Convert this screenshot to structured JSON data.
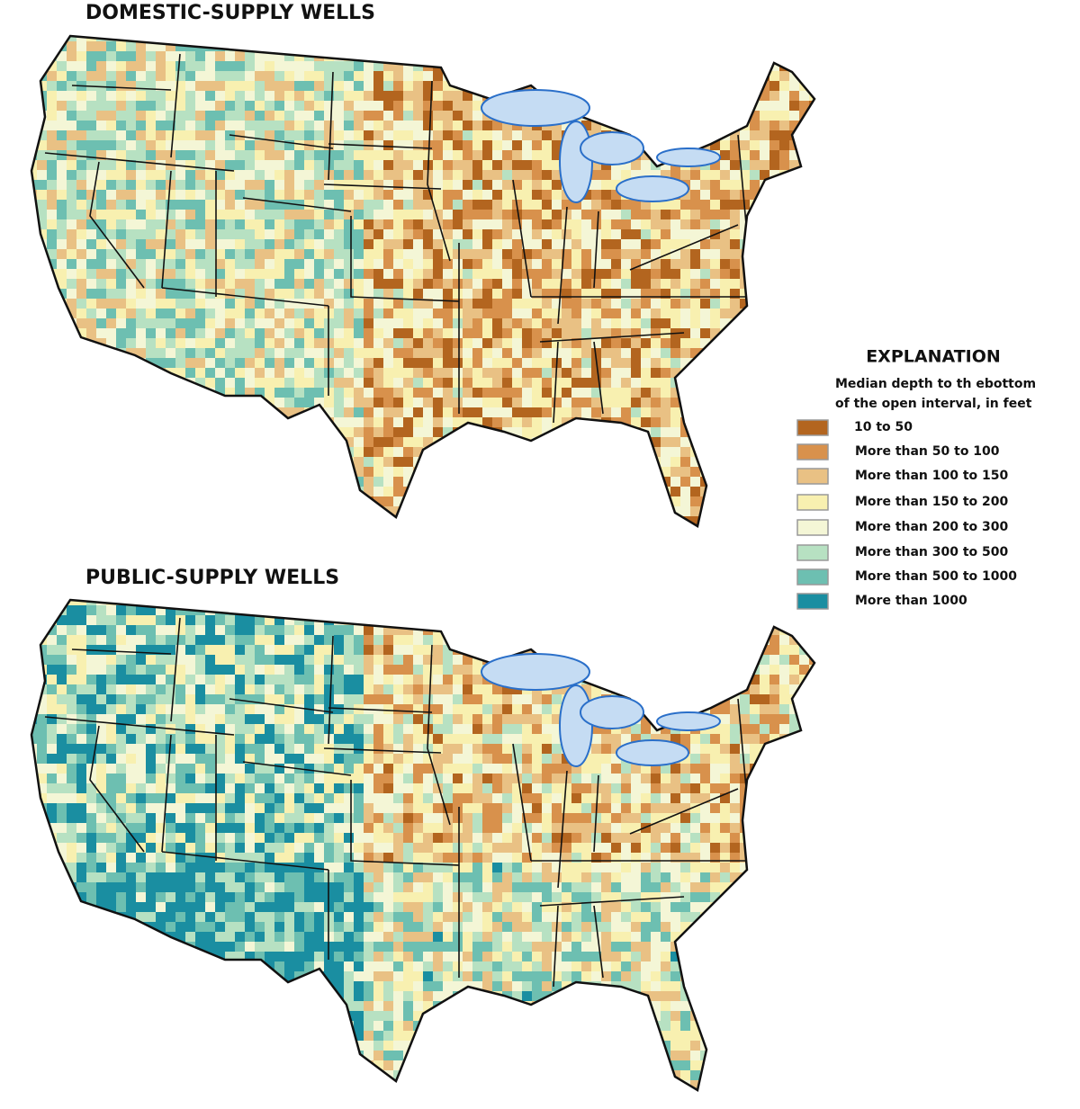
{
  "maps": [
    {
      "title": "DOMESTIC-SUPPLY WELLS"
    },
    {
      "title": "PUBLIC-SUPPLY WELLS"
    }
  ],
  "legend": {
    "title": "EXPLANATION",
    "subtitle": [
      "Median depth to th ebottom",
      "of the open interval, in feet"
    ],
    "items": [
      {
        "label": "10 to 50",
        "color": "#b3651f"
      },
      {
        "label": "More than 50 to 100",
        "color": "#d8914c"
      },
      {
        "label": "More than 100 to 150",
        "color": "#e9c184"
      },
      {
        "label": "More than 150 to 200",
        "color": "#f8f0b0"
      },
      {
        "label": "More than 200 to 300",
        "color": "#f4f6d6"
      },
      {
        "label": "More than 300 to 500",
        "color": "#b7e1c2"
      },
      {
        "label": "More than 500 to 1000",
        "color": "#6dbfb1"
      },
      {
        "label": "More than 1000",
        "color": "#1a8ea1"
      }
    ]
  }
}
